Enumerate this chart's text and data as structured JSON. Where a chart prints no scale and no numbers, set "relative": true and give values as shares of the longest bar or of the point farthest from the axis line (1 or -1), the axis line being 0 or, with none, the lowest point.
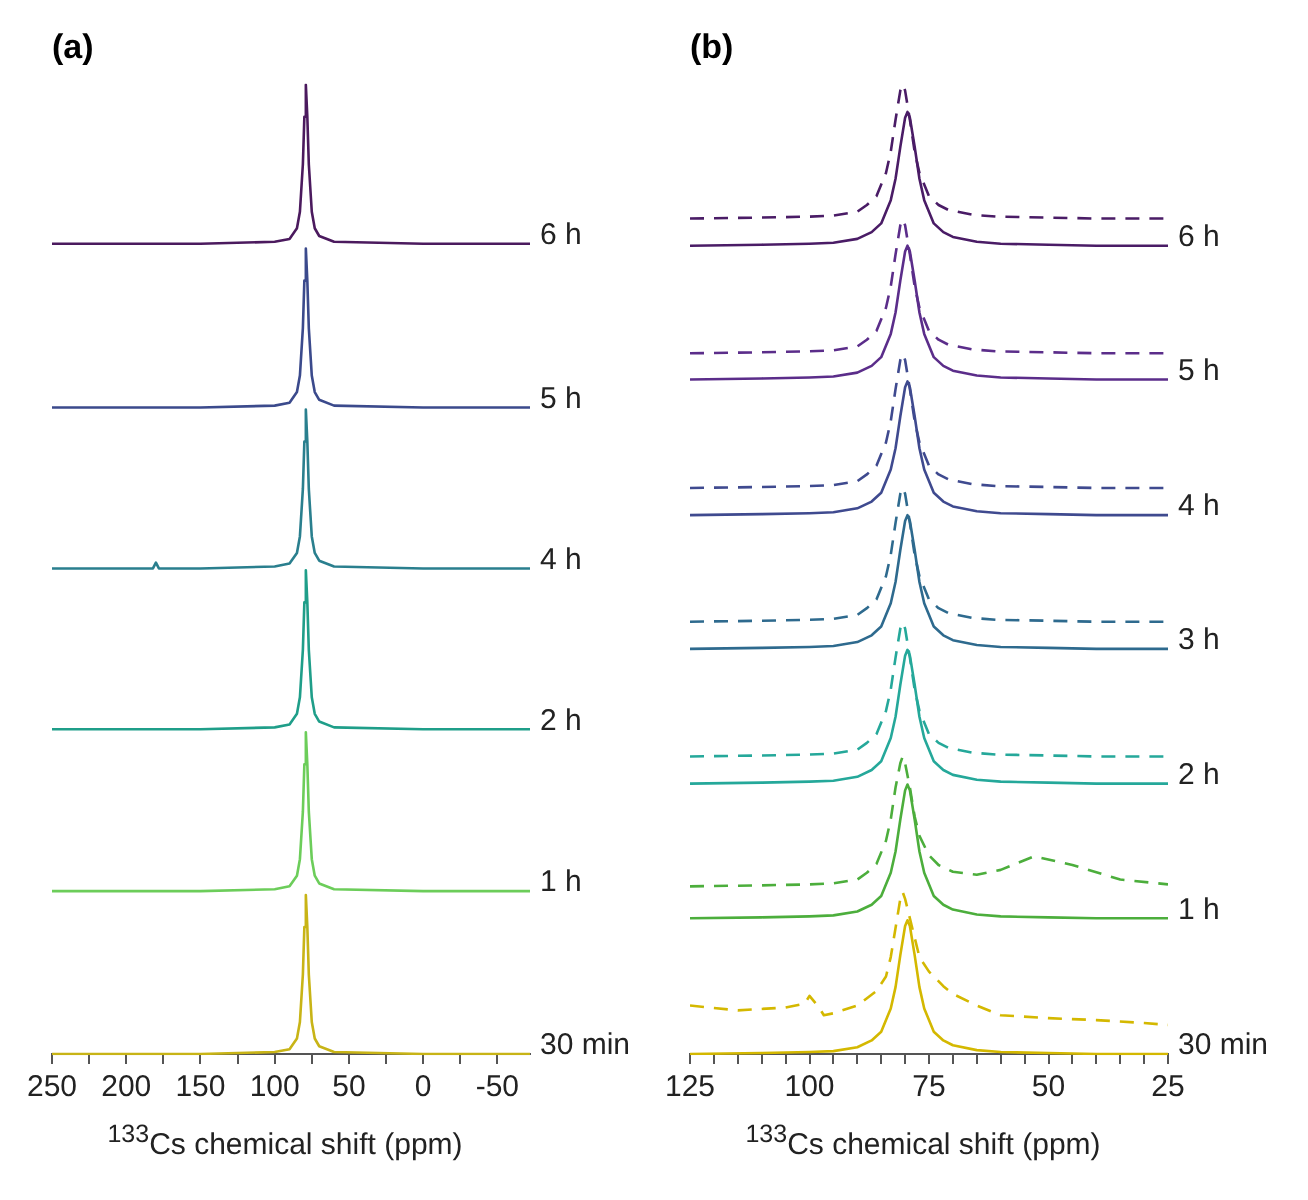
{
  "chart_data": [
    {
      "type": "line",
      "title": "(a)",
      "xlabel": "$^{133}$Cs chemical shift (ppm)",
      "relative": true,
      "grid": false,
      "legend": false,
      "xlim": [
        250,
        -72
      ],
      "xticks": [
        250,
        {
          "value": 225,
          "label": null
        },
        200,
        {
          "value": 175,
          "label": null
        },
        150,
        {
          "value": 125,
          "label": null
        },
        100,
        {
          "value": 75,
          "label": null
        },
        50,
        {
          "value": 25,
          "label": null
        },
        0,
        {
          "value": -25,
          "label": null
        },
        -50
      ],
      "x": [
        250,
        200,
        182,
        180,
        178,
        150,
        100,
        90,
        85,
        83,
        81,
        80,
        79,
        78,
        77,
        75,
        73,
        70,
        60,
        0,
        -72
      ],
      "series": [
        {
          "name": "6 h",
          "color": "#4b1a5e",
          "values": [
            0.836,
            0.836,
            0.836,
            0.836,
            0.836,
            0.836,
            0.838,
            0.841,
            0.852,
            0.869,
            0.918,
            0.967,
            1,
            0.967,
            0.918,
            0.869,
            0.852,
            0.844,
            0.838,
            0.836,
            0.836
          ]
        },
        {
          "name": "5 h",
          "color": "#3b4a8c",
          "values": [
            0.667,
            0.667,
            0.667,
            0.667,
            0.667,
            0.667,
            0.669,
            0.672,
            0.683,
            0.7,
            0.749,
            0.798,
            0.831,
            0.798,
            0.749,
            0.7,
            0.683,
            0.675,
            0.669,
            0.667,
            0.667
          ]
        },
        {
          "name": "4 h",
          "color": "#2a7f8e",
          "values": [
            0.501,
            0.501,
            0.501,
            0.507,
            0.501,
            0.501,
            0.503,
            0.506,
            0.517,
            0.534,
            0.583,
            0.632,
            0.665,
            0.632,
            0.583,
            0.534,
            0.517,
            0.509,
            0.503,
            0.501,
            0.501
          ]
        },
        {
          "name": "2 h",
          "color": "#1f9e89",
          "values": [
            0.335,
            0.335,
            0.335,
            0.335,
            0.335,
            0.335,
            0.337,
            0.34,
            0.351,
            0.368,
            0.417,
            0.466,
            0.499,
            0.466,
            0.417,
            0.368,
            0.351,
            0.343,
            0.337,
            0.335,
            0.335
          ]
        },
        {
          "name": "1 h",
          "color": "#6ccd5a",
          "values": [
            0.168,
            0.168,
            0.168,
            0.168,
            0.168,
            0.168,
            0.17,
            0.173,
            0.184,
            0.201,
            0.25,
            0.299,
            0.332,
            0.299,
            0.25,
            0.201,
            0.184,
            0.176,
            0.17,
            0.168,
            0.168
          ]
        },
        {
          "name": "30 min",
          "color": "#c8b416",
          "values": [
            0,
            0,
            0,
            0,
            0,
            0,
            0.002,
            0.005,
            0.016,
            0.033,
            0.082,
            0.131,
            0.164,
            0.131,
            0.082,
            0.033,
            0.016,
            0.008,
            0.002,
            0,
            0
          ]
        }
      ]
    },
    {
      "type": "line",
      "title": "(b)",
      "xlabel": "$^{133}$Cs chemical shift (ppm)",
      "relative": true,
      "grid": false,
      "legend": false,
      "xlim": [
        125,
        25
      ],
      "xticks": [
        125,
        {
          "value": 120,
          "label": null
        },
        {
          "value": 115,
          "label": null
        },
        {
          "value": 110,
          "label": null
        },
        {
          "value": 105,
          "label": null
        },
        100,
        {
          "value": 95,
          "label": null
        },
        {
          "value": 90,
          "label": null
        },
        {
          "value": 85,
          "label": null
        },
        {
          "value": 80,
          "label": null
        },
        75,
        {
          "value": 70,
          "label": null
        },
        {
          "value": 65,
          "label": null
        },
        {
          "value": 60,
          "label": null
        },
        {
          "value": 55,
          "label": null
        },
        50,
        {
          "value": 45,
          "label": null
        },
        {
          "value": 40,
          "label": null
        },
        {
          "value": 35,
          "label": null
        },
        {
          "value": 30,
          "label": null
        },
        25
      ],
      "x": [
        125,
        110,
        100,
        95,
        90,
        87,
        85,
        83,
        82,
        81,
        80,
        79.5,
        79,
        78,
        77,
        76,
        74,
        72,
        70,
        65,
        60,
        50,
        40,
        25
      ],
      "series": [
        {
          "color": "#4a1c66",
          "line_style": "dashed",
          "x": [
            125,
            110,
            100,
            95,
            90,
            88,
            86,
            84,
            83,
            82,
            81,
            80.5,
            80,
            79,
            78,
            77,
            75,
            73,
            71,
            66,
            61,
            50,
            40,
            25
          ],
          "values": [
            0.862,
            0.863,
            0.864,
            0.865,
            0.869,
            0.876,
            0.885,
            0.909,
            0.931,
            0.964,
            0.994,
            1,
            0.994,
            0.964,
            0.931,
            0.909,
            0.885,
            0.876,
            0.871,
            0.866,
            0.864,
            0.863,
            0.862,
            0.862
          ]
        },
        {
          "name": "6 h",
          "color": "#4a1c66",
          "values": [
            0.834,
            0.835,
            0.836,
            0.837,
            0.841,
            0.848,
            0.857,
            0.881,
            0.903,
            0.936,
            0.966,
            0.972,
            0.966,
            0.936,
            0.903,
            0.881,
            0.857,
            0.848,
            0.843,
            0.838,
            0.836,
            0.835,
            0.834,
            0.834
          ]
        },
        {
          "color": "#5b2d8a",
          "line_style": "dashed",
          "x": [
            125,
            110,
            100,
            95,
            90,
            88,
            86,
            84,
            83,
            82,
            81,
            80.5,
            80,
            79,
            78,
            77,
            75,
            73,
            71,
            66,
            61,
            50,
            40,
            25
          ],
          "values": [
            0.723,
            0.724,
            0.725,
            0.726,
            0.73,
            0.737,
            0.746,
            0.77,
            0.792,
            0.825,
            0.855,
            0.861,
            0.855,
            0.825,
            0.792,
            0.77,
            0.746,
            0.737,
            0.732,
            0.727,
            0.725,
            0.724,
            0.723,
            0.723
          ]
        },
        {
          "name": "5 h",
          "color": "#5b2d8a",
          "values": [
            0.696,
            0.697,
            0.698,
            0.699,
            0.703,
            0.71,
            0.719,
            0.743,
            0.765,
            0.798,
            0.828,
            0.834,
            0.828,
            0.798,
            0.765,
            0.743,
            0.719,
            0.71,
            0.705,
            0.7,
            0.698,
            0.697,
            0.696,
            0.696
          ]
        },
        {
          "color": "#3f4a8f",
          "line_style": "dashed",
          "x": [
            125,
            110,
            100,
            95,
            90,
            88,
            86,
            84,
            83,
            82,
            81,
            80.5,
            80,
            79,
            78,
            77,
            75,
            73,
            71,
            66,
            61,
            50,
            40,
            25
          ],
          "values": [
            0.584,
            0.585,
            0.586,
            0.587,
            0.591,
            0.598,
            0.607,
            0.631,
            0.653,
            0.686,
            0.716,
            0.722,
            0.716,
            0.686,
            0.653,
            0.631,
            0.607,
            0.598,
            0.593,
            0.588,
            0.586,
            0.585,
            0.584,
            0.584
          ]
        },
        {
          "name": "4 h",
          "color": "#3f4a8f",
          "values": [
            0.556,
            0.557,
            0.558,
            0.559,
            0.563,
            0.57,
            0.579,
            0.603,
            0.625,
            0.658,
            0.688,
            0.694,
            0.688,
            0.658,
            0.625,
            0.603,
            0.579,
            0.57,
            0.565,
            0.56,
            0.558,
            0.557,
            0.556,
            0.556
          ]
        },
        {
          "color": "#2e6a8e",
          "line_style": "dashed",
          "x": [
            125,
            110,
            100,
            95,
            90,
            88,
            86,
            84,
            83,
            82,
            81,
            80.5,
            80,
            79,
            78,
            77,
            75,
            73,
            71,
            66,
            61,
            50,
            40,
            25
          ],
          "values": [
            0.446,
            0.447,
            0.448,
            0.449,
            0.453,
            0.46,
            0.469,
            0.493,
            0.515,
            0.548,
            0.578,
            0.584,
            0.578,
            0.548,
            0.515,
            0.493,
            0.469,
            0.46,
            0.455,
            0.45,
            0.448,
            0.447,
            0.446,
            0.446
          ]
        },
        {
          "name": "3 h",
          "color": "#2e6a8e",
          "values": [
            0.418,
            0.419,
            0.42,
            0.421,
            0.425,
            0.432,
            0.441,
            0.465,
            0.487,
            0.52,
            0.55,
            0.556,
            0.55,
            0.52,
            0.487,
            0.465,
            0.441,
            0.432,
            0.427,
            0.422,
            0.42,
            0.419,
            0.418,
            0.418
          ]
        },
        {
          "color": "#25a89a",
          "line_style": "dashed",
          "x": [
            125,
            110,
            100,
            95,
            90,
            88,
            86,
            84,
            83,
            82,
            81,
            80.5,
            80,
            79,
            78,
            77,
            75,
            73,
            71,
            66,
            61,
            50,
            40,
            25
          ],
          "values": [
            0.307,
            0.308,
            0.309,
            0.31,
            0.314,
            0.321,
            0.33,
            0.354,
            0.376,
            0.409,
            0.439,
            0.445,
            0.439,
            0.409,
            0.376,
            0.354,
            0.33,
            0.321,
            0.316,
            0.311,
            0.309,
            0.308,
            0.307,
            0.307
          ]
        },
        {
          "name": "2 h",
          "color": "#25a89a",
          "values": [
            0.279,
            0.28,
            0.281,
            0.282,
            0.286,
            0.293,
            0.302,
            0.326,
            0.348,
            0.381,
            0.411,
            0.417,
            0.411,
            0.381,
            0.348,
            0.326,
            0.302,
            0.293,
            0.288,
            0.283,
            0.281,
            0.28,
            0.279,
            0.279
          ]
        },
        {
          "color": "#4cae3c",
          "line_style": "dashed",
          "x": [
            125,
            110,
            100,
            95,
            90,
            88,
            86,
            84,
            83,
            82,
            81,
            80.5,
            80,
            79,
            78,
            77,
            75,
            73,
            70,
            65,
            60,
            53,
            45,
            35,
            25
          ],
          "values": [
            0.173,
            0.174,
            0.175,
            0.176,
            0.18,
            0.187,
            0.196,
            0.22,
            0.242,
            0.275,
            0.3,
            0.307,
            0.3,
            0.275,
            0.245,
            0.225,
            0.205,
            0.195,
            0.188,
            0.185,
            0.19,
            0.204,
            0.195,
            0.18,
            0.175
          ]
        },
        {
          "name": "1 h",
          "color": "#4cae3c",
          "values": [
            0.14,
            0.141,
            0.142,
            0.143,
            0.147,
            0.154,
            0.163,
            0.187,
            0.209,
            0.242,
            0.272,
            0.278,
            0.272,
            0.242,
            0.209,
            0.187,
            0.163,
            0.154,
            0.149,
            0.144,
            0.142,
            0.141,
            0.14,
            0.14
          ]
        },
        {
          "color": "#d4b800",
          "line_style": "dashed",
          "x": [
            125,
            115,
            105,
            101,
            100,
            98,
            97,
            95,
            90,
            86,
            84,
            83,
            82,
            81,
            80.5,
            80,
            79,
            78,
            77,
            75,
            72,
            70,
            65,
            60,
            50,
            40,
            30,
            25
          ],
          "values": [
            0.05,
            0.045,
            0.048,
            0.052,
            0.06,
            0.048,
            0.04,
            0.042,
            0.05,
            0.065,
            0.08,
            0.1,
            0.13,
            0.16,
            0.167,
            0.16,
            0.14,
            0.12,
            0.1,
            0.085,
            0.07,
            0.062,
            0.05,
            0.04,
            0.037,
            0.035,
            0.032,
            0.03
          ]
        },
        {
          "name": "30 min",
          "color": "#d4b800",
          "values": [
            0,
            0.001,
            0.002,
            0.003,
            0.007,
            0.014,
            0.023,
            0.047,
            0.069,
            0.102,
            0.132,
            0.138,
            0.132,
            0.102,
            0.069,
            0.047,
            0.023,
            0.014,
            0.009,
            0.004,
            0.002,
            0.001,
            0,
            0
          ]
        }
      ]
    }
  ]
}
